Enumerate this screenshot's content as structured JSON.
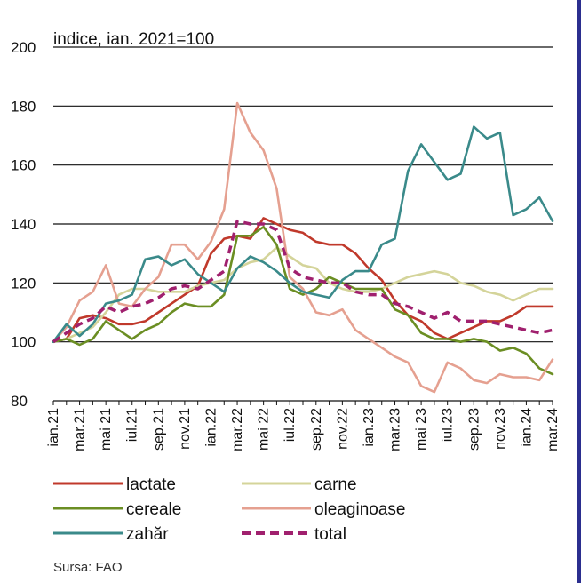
{
  "chart_data": {
    "type": "line",
    "ylabel": "indice, ian. 2021=100",
    "ylim": [
      80,
      200
    ],
    "yticks": [
      80,
      100,
      120,
      140,
      160,
      180,
      200
    ],
    "x": [
      "ian.21",
      "feb.21",
      "mar.21",
      "apr.21",
      "mai 21",
      "iun.21",
      "iul.21",
      "aug.21",
      "sep.21",
      "oct.21",
      "nov.21",
      "dec.21",
      "ian.22",
      "feb.22",
      "mar.22",
      "apr.22",
      "mai 22",
      "iun.22",
      "iul.22",
      "aug.22",
      "sep.22",
      "oct.22",
      "nov.22",
      "dec.22",
      "ian.23",
      "feb.23",
      "mar.23",
      "apr.23",
      "mai 23",
      "iun.23",
      "iul.23",
      "aug.23",
      "sep.23",
      "oct.23",
      "nov.23",
      "dec.23",
      "ian.24",
      "feb.24",
      "mar.24"
    ],
    "xticklabels": [
      "ian.21",
      "mar.21",
      "mai 21",
      "iul.21",
      "sep.21",
      "nov.21",
      "ian.22",
      "mar.22",
      "mai 22",
      "iul.22",
      "sep.22",
      "nov.22",
      "ian.23",
      "mar.23",
      "mai 23",
      "iul.23",
      "sep.23",
      "nov.23",
      "ian.24",
      "mar.24"
    ],
    "series": [
      {
        "name": "lactate",
        "color": "#c0392b",
        "dash": false,
        "values": [
          100,
          101,
          108,
          109,
          108,
          106,
          106,
          107,
          110,
          113,
          116,
          119,
          130,
          135,
          136,
          135,
          142,
          140,
          138,
          137,
          134,
          133,
          133,
          130,
          125,
          121,
          114,
          109,
          107,
          103,
          101,
          103,
          105,
          107,
          107,
          109,
          112,
          112,
          112
        ]
      },
      {
        "name": "carne",
        "color": "#d4d49a",
        "dash": false,
        "values": [
          100,
          101,
          103,
          105,
          110,
          116,
          118,
          118,
          117,
          117,
          117,
          119,
          120,
          121,
          125,
          127,
          128,
          132,
          129,
          126,
          125,
          120,
          118,
          117,
          117,
          118,
          120,
          122,
          123,
          124,
          123,
          120,
          119,
          117,
          116,
          114,
          116,
          118,
          118
        ]
      },
      {
        "name": "cereale",
        "color": "#6b8e23",
        "dash": false,
        "values": [
          100,
          101,
          99,
          101,
          107,
          104,
          101,
          104,
          106,
          110,
          113,
          112,
          112,
          116,
          136,
          136,
          139,
          133,
          118,
          116,
          118,
          122,
          120,
          118,
          118,
          118,
          111,
          109,
          103,
          101,
          101,
          100,
          101,
          100,
          97,
          98,
          96,
          91,
          89
        ]
      },
      {
        "name": "oleaginoase",
        "color": "#e5a090",
        "dash": false,
        "values": [
          100,
          105,
          114,
          117,
          126,
          113,
          112,
          118,
          122,
          133,
          133,
          128,
          134,
          145,
          181,
          171,
          165,
          152,
          122,
          118,
          110,
          109,
          111,
          104,
          101,
          98,
          95,
          93,
          85,
          83,
          93,
          91,
          87,
          86,
          89,
          88,
          88,
          87,
          94
        ]
      },
      {
        "name": "zahăr",
        "color": "#3a8a8a",
        "dash": false,
        "values": [
          100,
          106,
          102,
          106,
          113,
          114,
          116,
          128,
          129,
          126,
          128,
          123,
          120,
          117,
          125,
          129,
          127,
          124,
          120,
          117,
          116,
          115,
          121,
          124,
          124,
          133,
          135,
          158,
          167,
          161,
          155,
          157,
          173,
          169,
          171,
          143,
          145,
          149,
          141
        ]
      },
      {
        "name": "total",
        "color": "#a0206e",
        "dash": true,
        "values": [
          100,
          103,
          106,
          108,
          112,
          110,
          112,
          113,
          115,
          118,
          119,
          118,
          121,
          124,
          141,
          140,
          140,
          138,
          125,
          122,
          121,
          120,
          120,
          117,
          116,
          116,
          113,
          112,
          110,
          108,
          110,
          107,
          107,
          107,
          106,
          105,
          104,
          103,
          104
        ]
      }
    ]
  },
  "source": "Sursa: FAO"
}
